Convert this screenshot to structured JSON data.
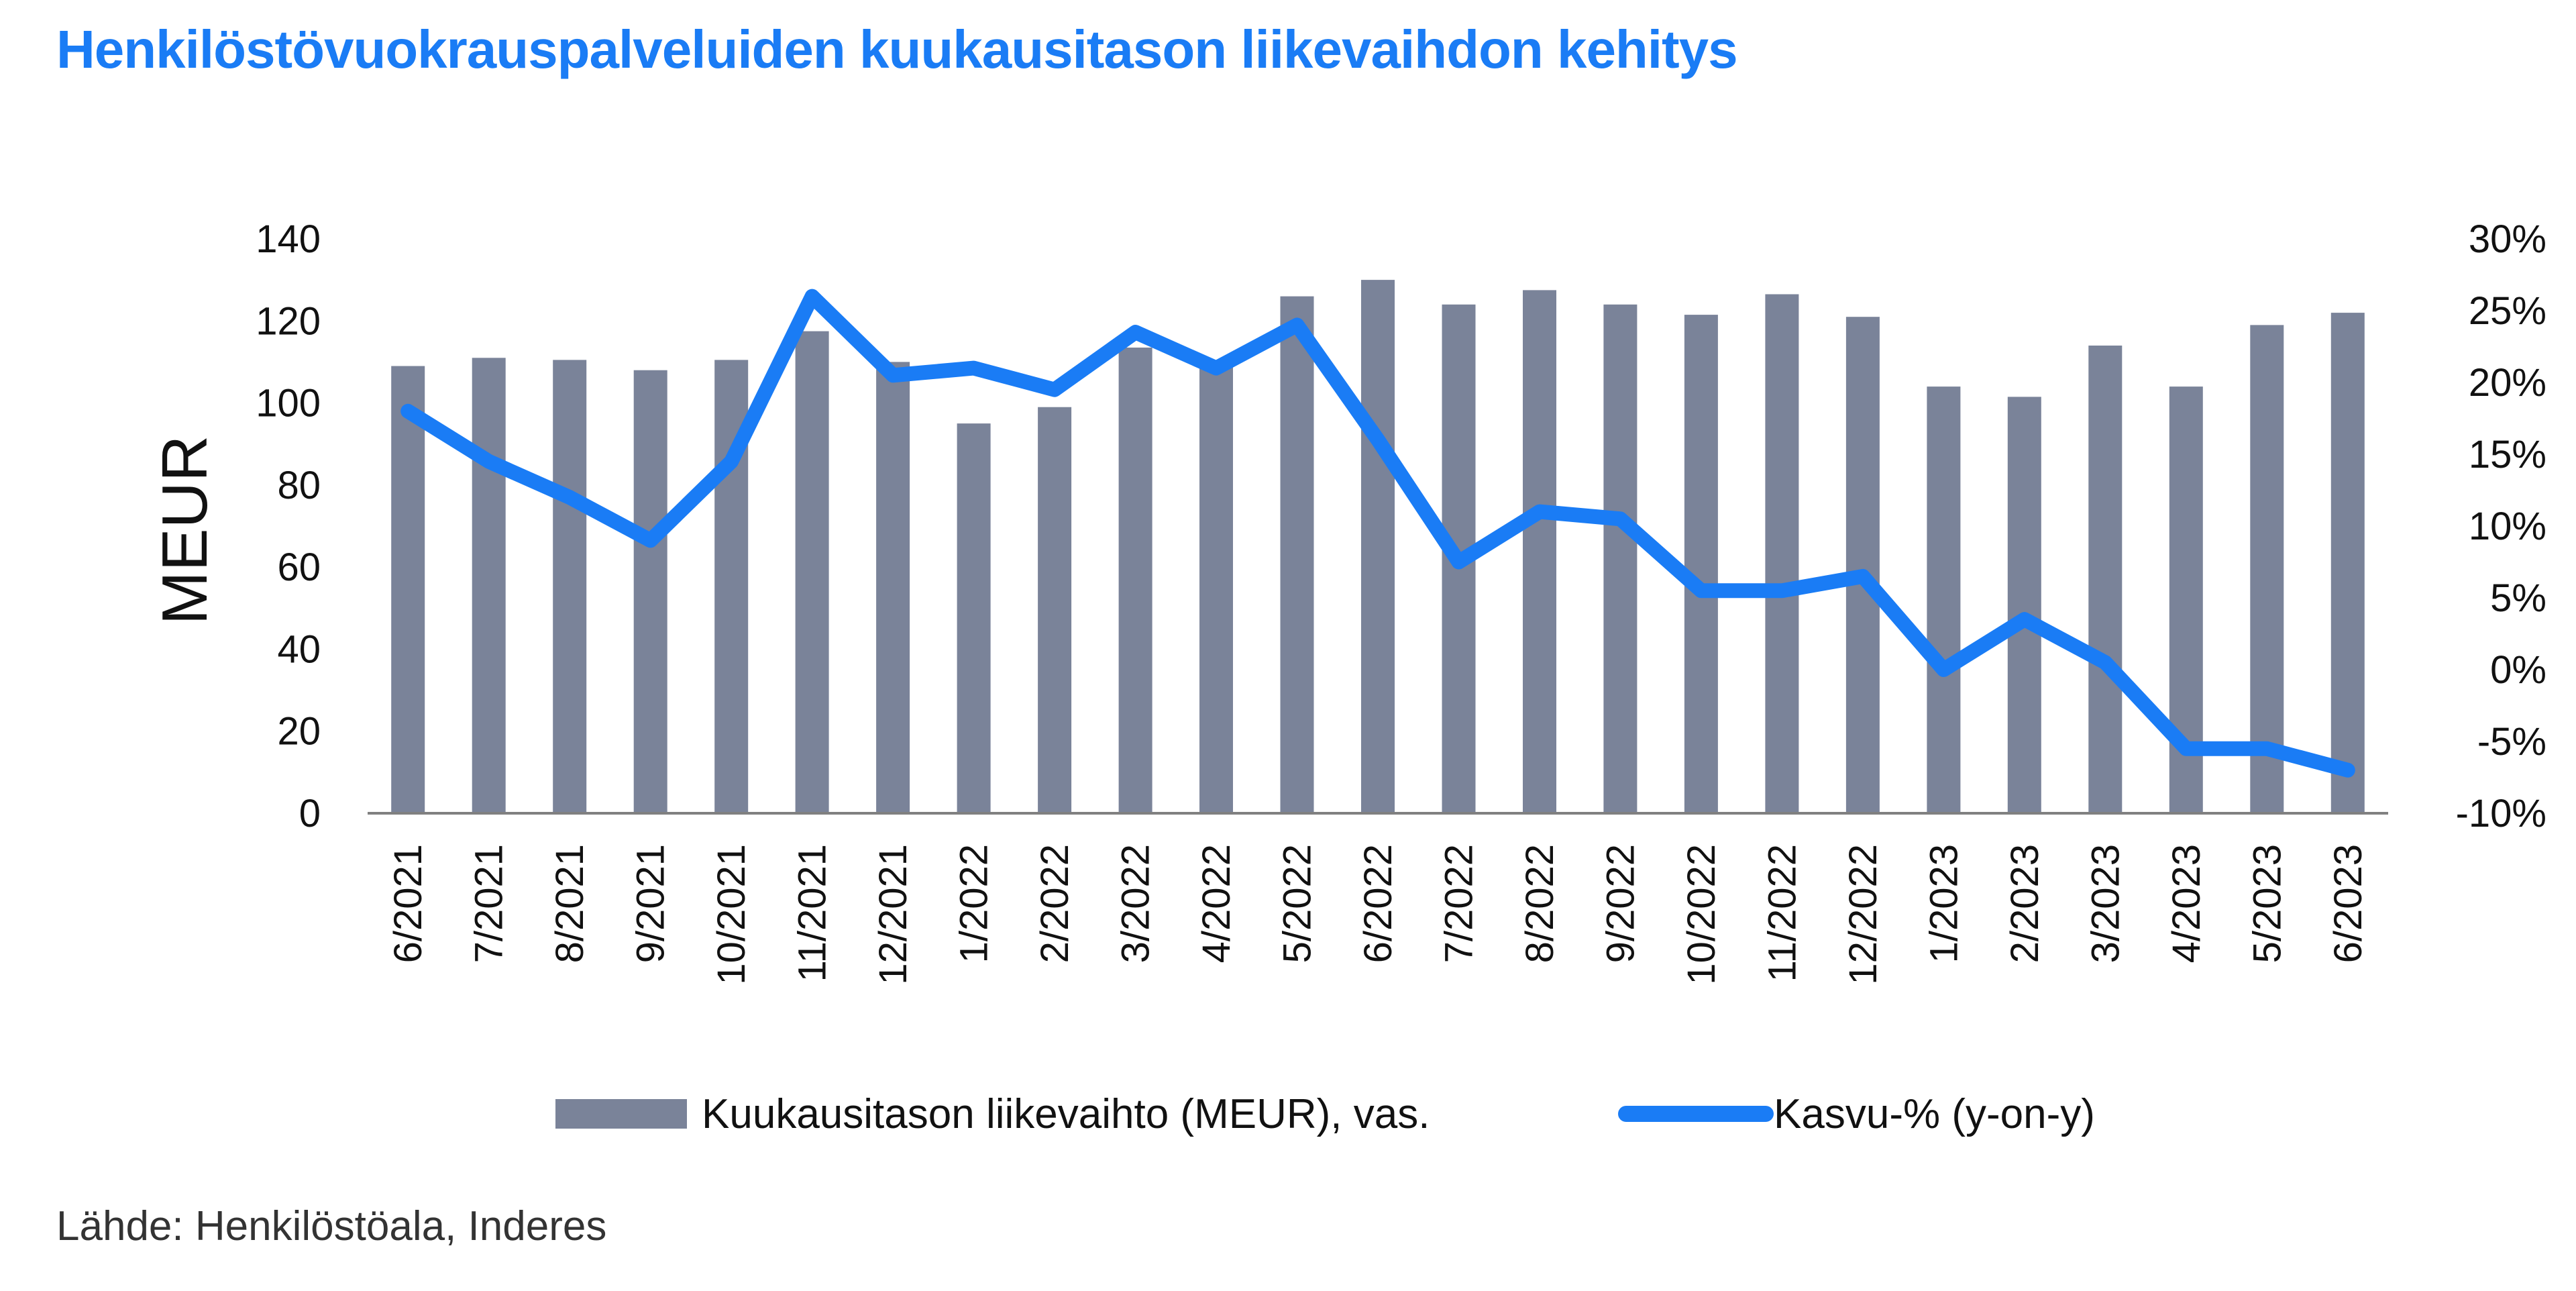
{
  "chart_data": {
    "type": "bar",
    "title": "Henkilöstövuokrauspalveluiden kuukausitason liikevaihdon kehitys",
    "categories": [
      "6/2021",
      "7/2021",
      "8/2021",
      "9/2021",
      "10/2021",
      "11/2021",
      "12/2021",
      "1/2022",
      "2/2022",
      "3/2022",
      "4/2022",
      "5/2022",
      "6/2022",
      "7/2022",
      "8/2022",
      "9/2022",
      "10/2022",
      "11/2022",
      "12/2022",
      "1/2023",
      "2/2023",
      "3/2023",
      "4/2023",
      "5/2023",
      "6/2023"
    ],
    "series": [
      {
        "name": "Kuukausitason liikevaihto (MEUR), vas.",
        "type": "bar",
        "axis": "left",
        "values": [
          109,
          111,
          110.5,
          108,
          110.5,
          117.5,
          110,
          95,
          99,
          113.5,
          109,
          126,
          130,
          124,
          127.5,
          124,
          121.5,
          126.5,
          121,
          104,
          101.5,
          114,
          104,
          119,
          122
        ]
      },
      {
        "name": "Kasvu-% (y-on-y)",
        "type": "line",
        "axis": "right",
        "values": [
          18,
          14.5,
          12,
          9,
          14.5,
          26,
          20.5,
          21,
          19.5,
          23.5,
          21,
          24,
          16,
          7.5,
          11,
          10.5,
          5.5,
          5.5,
          6.5,
          0,
          3.5,
          0.5,
          -5.5,
          -5.5,
          -7
        ]
      }
    ],
    "ylabel": "MEUR",
    "ylim": [
      0,
      140
    ],
    "yticks": [
      "0",
      "20",
      "40",
      "60",
      "80",
      "100",
      "120",
      "140"
    ],
    "y2lim": [
      -10,
      30
    ],
    "y2ticks": [
      "-10%",
      "-5%",
      "0%",
      "5%",
      "10%",
      "15%",
      "20%",
      "25%",
      "30%"
    ],
    "legend_position": "bottom",
    "colors": {
      "bar": "#7a8399",
      "line": "#1a7cf5",
      "axis": "#808080"
    }
  },
  "source": "Lähde: Henkilöstöala, Inderes"
}
